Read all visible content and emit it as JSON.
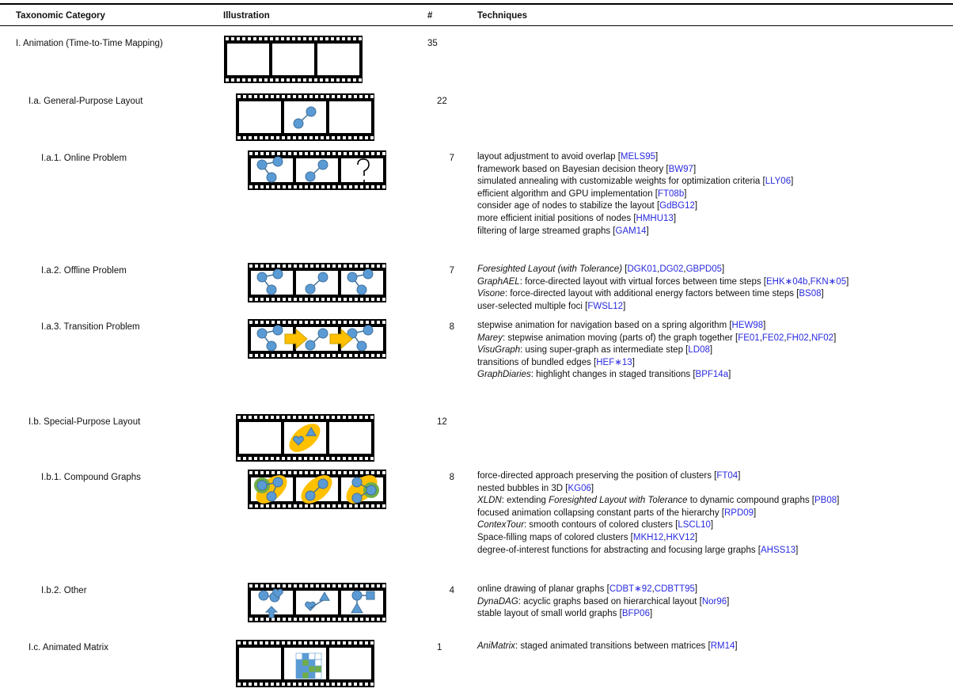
{
  "table": {
    "header": [
      "Taxonomic Category",
      "Illustration",
      "#",
      "Techniques"
    ],
    "rows": [
      {
        "category": "I. Animation (Time-to-Time Mapping)",
        "count": 35,
        "techniques": []
      },
      {
        "category": "I.a. General-Purpose Layout",
        "count": 22,
        "techniques": []
      },
      {
        "category": "I.a.1. Online Problem",
        "count": 7,
        "techniques": [
          [
            "layout adjustment to avoid overlap [",
            {
              "ref": "MELS95"
            },
            "]"
          ],
          [
            "framework based on Bayesian decision theory [",
            {
              "ref": "BW97"
            },
            "]"
          ],
          [
            "simulated annealing with customizable weights for optimization criteria [",
            {
              "ref": "LLY06"
            },
            "]"
          ],
          [
            "efficient algorithm and GPU implementation [",
            {
              "ref": "FT08b"
            },
            "]"
          ],
          [
            "consider age of nodes to stabilize the layout [",
            {
              "ref": "GdBG12"
            },
            "]"
          ],
          [
            "more efficient initial positions of nodes [",
            {
              "ref": "HMHU13"
            },
            "]"
          ],
          [
            "filtering of large streamed graphs [",
            {
              "ref": "GAM14"
            },
            "]"
          ]
        ]
      },
      {
        "category": "I.a.2. Offline Problem",
        "count": 7,
        "techniques": [
          [
            {
              "italic": "Foresighted Layout (with Tolerance)"
            },
            " [",
            {
              "ref": "DGK01"
            },
            ",",
            {
              "ref": "DG02"
            },
            ",",
            {
              "ref": "GBPD05"
            },
            "]"
          ],
          [
            {
              "italic": "GraphAEL"
            },
            ": force-directed layout with virtual forces between time steps [",
            {
              "ref": "EHK∗04b"
            },
            ",",
            {
              "ref": "FKN∗05"
            },
            "]"
          ],
          [
            {
              "italic": "Visone"
            },
            ": force-directed layout with additional energy factors between time steps [",
            {
              "ref": "BS08"
            },
            "]"
          ],
          [
            "user-selected multiple foci [",
            {
              "ref": "FWSL12"
            },
            "]"
          ]
        ]
      },
      {
        "category": "I.a.3. Transition Problem",
        "count": 8,
        "techniques": [
          [
            "stepwise animation for navigation based on a spring algorithm [",
            {
              "ref": "HEW98"
            },
            "]"
          ],
          [
            {
              "italic": "Marey"
            },
            ": stepwise animation moving (parts of) the graph together [",
            {
              "ref": "FE01"
            },
            ",",
            {
              "ref": "FE02"
            },
            ",",
            {
              "ref": "FH02"
            },
            ",",
            {
              "ref": "NF02"
            },
            "]"
          ],
          [
            {
              "italic": "VisuGraph"
            },
            ": using super-graph as intermediate step [",
            {
              "ref": "LD08"
            },
            "]"
          ],
          [
            "transitions of bundled edges [",
            {
              "ref": "HEF∗13"
            },
            "]"
          ],
          [
            {
              "italic": "GraphDiaries"
            },
            ": highlight changes in staged transitions [",
            {
              "ref": "BPF14a"
            },
            "]"
          ]
        ]
      },
      {
        "category": "I.b. Special-Purpose Layout",
        "count": 12,
        "techniques": []
      },
      {
        "category": "I.b.1. Compound Graphs",
        "count": 8,
        "techniques": [
          [
            "force-directed approach preserving the position of clusters [",
            {
              "ref": "FT04"
            },
            "]"
          ],
          [
            "nested bubbles in 3D [",
            {
              "ref": "KG06"
            },
            "]"
          ],
          [
            {
              "italic": "XLDN"
            },
            ": extending ",
            {
              "italic": "Foresighted Layout with Tolerance"
            },
            " to dynamic compound graphs [",
            {
              "ref": "PB08"
            },
            "]"
          ],
          [
            "focused animation collapsing constant parts of the hierarchy [",
            {
              "ref": "RPD09"
            },
            "]"
          ],
          [
            {
              "italic": "ContexTour"
            },
            ": smooth contours of colored clusters [",
            {
              "ref": "LSCL10"
            },
            "]"
          ],
          [
            "Space-filling maps of colored clusters [",
            {
              "ref": "MKH12"
            },
            ",",
            {
              "ref": "HKV12"
            },
            "]"
          ],
          [
            "degree-of-interest functions for abstracting and focusing large graphs [",
            {
              "ref": "AHSS13"
            },
            "]"
          ]
        ]
      },
      {
        "category": "I.b.2. Other",
        "count": 4,
        "techniques": [
          [
            "online drawing of planar graphs [",
            {
              "ref": "CDBT∗92"
            },
            ",",
            {
              "ref": "CDBTT95"
            },
            "]"
          ],
          [
            {
              "italic": "DynaDAG"
            },
            ": acyclic graphs based on hierarchical layout [",
            {
              "ref": "Nor96"
            },
            "]"
          ],
          [
            "stable layout of small world graphs [",
            {
              "ref": "BFP06"
            },
            "]"
          ]
        ]
      },
      {
        "category": "I.c. Animated Matrix",
        "count": 1,
        "techniques": [
          [
            {
              "italic": "AniMatrix"
            },
            ": staged animated transitions between matrices [",
            {
              "ref": "RM14"
            },
            "]"
          ]
        ]
      }
    ]
  }
}
